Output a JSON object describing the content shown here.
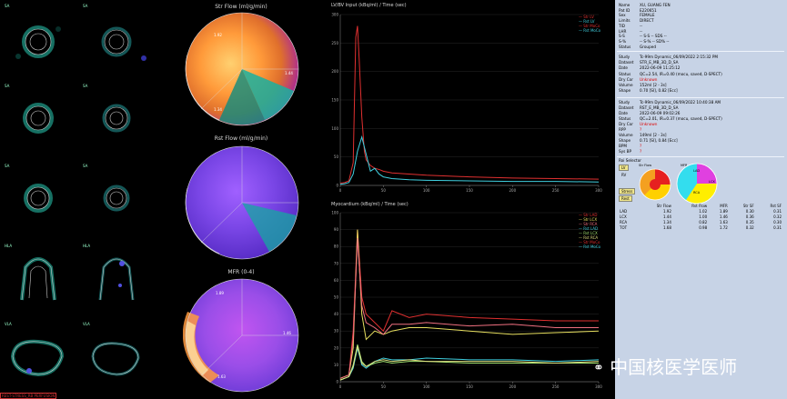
{
  "slices": {
    "panels": [
      {
        "label": "SA"
      },
      {
        "label": "SA"
      },
      {
        "label": "SA"
      },
      {
        "label": "SA"
      },
      {
        "label": "SA"
      },
      {
        "label": "SA"
      },
      {
        "label": "HLA"
      },
      {
        "label": "HLA"
      },
      {
        "label": "VLA"
      },
      {
        "label": "VLA"
      }
    ],
    "bottom_link": "REST-STRESS_RB PERFUSION"
  },
  "polar_maps": [
    {
      "title": "Str Flow (ml/g/min)",
      "segments": {
        "lad": "1.92",
        "lcx": "1.44",
        "rca": "1.34"
      }
    },
    {
      "title": "Rst Flow (ml/g/min)",
      "segments": {
        "lad": "",
        "lcx": "",
        "rca": ""
      }
    },
    {
      "title": "MFR (0-4)",
      "segments": {
        "lad": "1.89",
        "lcx": "1.46",
        "rca": "1.63"
      }
    }
  ],
  "charts": {
    "lvbp": {
      "title": "LV/BV Input (kBq/ml) / Time (sec)",
      "legend": [
        {
          "name": "Str LV",
          "color": "#e03030"
        },
        {
          "name": "Rst LV",
          "color": "#40d0e0"
        },
        {
          "name": "Str MoCo",
          "color": "#e03030"
        },
        {
          "name": "Rst MoCo",
          "color": "#40d0e0"
        }
      ],
      "chart_data": {
        "type": "line",
        "xlabel": "",
        "ylabel": "",
        "xlim": [
          0,
          300
        ],
        "ylim": [
          0,
          300
        ],
        "xticks": [
          0,
          50,
          100,
          150,
          200,
          250,
          300
        ],
        "yticks": [
          0,
          50,
          100,
          150,
          200,
          250,
          300
        ],
        "series": [
          {
            "name": "Str LV",
            "color": "#e03030",
            "x": [
              0,
              5,
              10,
              15,
              18,
              20,
              22,
              25,
              28,
              30,
              35,
              40,
              45,
              50,
              60,
              80,
              100,
              150,
              200,
              250,
              300
            ],
            "y": [
              4,
              5,
              8,
              40,
              260,
              280,
              220,
              120,
              60,
              45,
              35,
              30,
              28,
              25,
              22,
              20,
              18,
              15,
              13,
              12,
              11
            ]
          },
          {
            "name": "Rst LV",
            "color": "#40d0e0",
            "x": [
              0,
              5,
              10,
              15,
              20,
              25,
              30,
              35,
              40,
              45,
              50,
              60,
              80,
              100,
              150,
              200,
              250,
              300
            ],
            "y": [
              2,
              3,
              5,
              20,
              60,
              85,
              55,
              25,
              30,
              20,
              15,
              12,
              10,
              9,
              8,
              7,
              7,
              6
            ]
          }
        ]
      }
    },
    "myo": {
      "title": "Myocardium (kBq/ml) / Time (sec)",
      "legend": [
        {
          "name": "Str LAD",
          "color": "#e03030"
        },
        {
          "name": "Str LCX",
          "color": "#e8e060"
        },
        {
          "name": "Str RCA",
          "color": "#f07080"
        },
        {
          "name": "Rst LAD",
          "color": "#40d0e0"
        },
        {
          "name": "Rst LCX",
          "color": "#a0e070"
        },
        {
          "name": "Rst RCA",
          "color": "#e0e080"
        },
        {
          "name": "Str MoCo",
          "color": "#e03030"
        },
        {
          "name": "Rst MoCo",
          "color": "#40d0e0"
        }
      ],
      "chart_data": {
        "type": "line",
        "xlabel": "",
        "ylabel": "",
        "xlim": [
          0,
          300
        ],
        "ylim": [
          0,
          100
        ],
        "xticks": [
          0,
          50,
          100,
          150,
          200,
          250,
          300
        ],
        "yticks": [
          0,
          10,
          20,
          30,
          40,
          50,
          60,
          70,
          80,
          90,
          100
        ],
        "series": [
          {
            "name": "Str LAD",
            "color": "#e03030",
            "x": [
              0,
              10,
              15,
              20,
              25,
              30,
              40,
              50,
              60,
              80,
              100,
              150,
              200,
              250,
              300
            ],
            "y": [
              2,
              4,
              30,
              90,
              50,
              40,
              35,
              30,
              42,
              38,
              40,
              38,
              37,
              36,
              36
            ]
          },
          {
            "name": "Str LCX",
            "color": "#e8e060",
            "x": [
              0,
              10,
              15,
              20,
              25,
              30,
              40,
              50,
              60,
              80,
              100,
              150,
              200,
              250,
              300
            ],
            "y": [
              2,
              4,
              20,
              90,
              40,
              25,
              30,
              28,
              30,
              32,
              32,
              30,
              28,
              29,
              30
            ]
          },
          {
            "name": "Str RCA",
            "color": "#f07080",
            "x": [
              0,
              10,
              15,
              20,
              25,
              30,
              40,
              50,
              60,
              80,
              100,
              150,
              200,
              250,
              300
            ],
            "y": [
              2,
              4,
              25,
              85,
              45,
              35,
              32,
              28,
              34,
              34,
              35,
              33,
              34,
              32,
              32
            ]
          },
          {
            "name": "Rst LAD",
            "color": "#40d0e0",
            "x": [
              0,
              10,
              15,
              20,
              25,
              30,
              40,
              50,
              60,
              80,
              100,
              150,
              200,
              250,
              300
            ],
            "y": [
              1,
              3,
              8,
              20,
              10,
              8,
              12,
              14,
              13,
              13,
              14,
              13,
              13,
              12,
              13
            ]
          },
          {
            "name": "Rst LCX",
            "color": "#a0e070",
            "x": [
              0,
              10,
              15,
              20,
              25,
              30,
              40,
              50,
              60,
              80,
              100,
              150,
              200,
              250,
              300
            ],
            "y": [
              1,
              3,
              10,
              22,
              12,
              9,
              11,
              12,
              11,
              12,
              12,
              11,
              11,
              11,
              11
            ]
          },
          {
            "name": "Rst RCA",
            "color": "#e0e080",
            "x": [
              0,
              10,
              15,
              20,
              25,
              30,
              40,
              50,
              60,
              80,
              100,
              150,
              200,
              250,
              300
            ],
            "y": [
              1,
              3,
              9,
              21,
              11,
              9,
              12,
              13,
              12,
              13,
              12,
              12,
              12,
              11,
              12
            ]
          }
        ]
      }
    }
  },
  "info": {
    "patient": [
      {
        "k": "Name",
        "v": "XU, GUANG FEN"
      },
      {
        "k": "Pat ID",
        "v": "E220651"
      },
      {
        "k": "Sex",
        "v": "FEMALE"
      },
      {
        "k": "Limits",
        "v": "DIRECT"
      },
      {
        "k": "TID",
        "v": "--"
      },
      {
        "k": "LHR",
        "v": "--"
      },
      {
        "k": "S-S",
        "v": "--   S-S   --    SDS   --"
      },
      {
        "k": "S-%",
        "v": "--   S-%   --    SD%   --"
      },
      {
        "k": "Status",
        "v": "Grouped"
      }
    ],
    "stress": [
      {
        "k": "Study",
        "v": "Tc-99m Dynamic_06/09/2022  2:15:32 PM"
      },
      {
        "k": "Dataset",
        "v": "STR_E_MB_3D_D_SA"
      },
      {
        "k": "Date",
        "v": "2022-06-09  11:25:12"
      },
      {
        "k": "Status",
        "v": "QC=2.54, IR=0.40 (mocu, saved, D-SPECT)"
      },
      {
        "k": "Dry Cor",
        "v": "Unknown",
        "red": true
      },
      {
        "k": "Volume",
        "v": "152ml [2 - 3s]"
      },
      {
        "k": "Shape",
        "v": "0.70 [SI], 0.82 [Ecc]"
      }
    ],
    "rest": [
      {
        "k": "Study",
        "v": "Tc-99m Dynamic_06/09/2022  10:40:38 AM"
      },
      {
        "k": "Dataset",
        "v": "RST_E_MB_3D_D_SA"
      },
      {
        "k": "Date",
        "v": "2022-06-09  09:02:26"
      },
      {
        "k": "Status",
        "v": "QC=2.01, IR=0.37 (mocu, saved, D-SPECT)"
      },
      {
        "k": "Dry Cor",
        "v": "Unknown",
        "red": true
      },
      {
        "k": "RPP",
        "v": "?",
        "red": true
      },
      {
        "k": "Volume",
        "v": "149ml [2 - 3s]"
      },
      {
        "k": "Shape",
        "v": "0.71 [SI], 0.84 [Ecc]"
      },
      {
        "k": "BPM",
        "v": "?",
        "red": true
      },
      {
        "k": "Sys BP",
        "v": "?",
        "red": true
      }
    ],
    "roi_selector": "Roi Selector",
    "buttons": {
      "lv": "LV",
      "rv": "RV",
      "stress": "Stress",
      "rest": "Rest"
    },
    "mini_polar": {
      "left_label": "Str Flow",
      "right_label": "MFR",
      "lad": "LAD",
      "lcx": "LCX",
      "rca": "RCA"
    },
    "table": {
      "headers": [
        "",
        "Str Flow",
        "Rst Flow",
        "MFR",
        "Str SF",
        "Rst SF"
      ],
      "rows": [
        [
          "LAD",
          "1.92",
          "1.02",
          "1.89",
          "0.30",
          "0.31"
        ],
        [
          "LCX",
          "1.44",
          "1.00",
          "1.46",
          "0.36",
          "0.32"
        ],
        [
          "RCA",
          "1.34",
          "0.82",
          "1.63",
          "0.35",
          "0.30"
        ],
        [
          "TOT",
          "1.68",
          "0.98",
          "1.72",
          "0.32",
          "0.31"
        ]
      ]
    }
  },
  "watermark": "中国核医学医师"
}
